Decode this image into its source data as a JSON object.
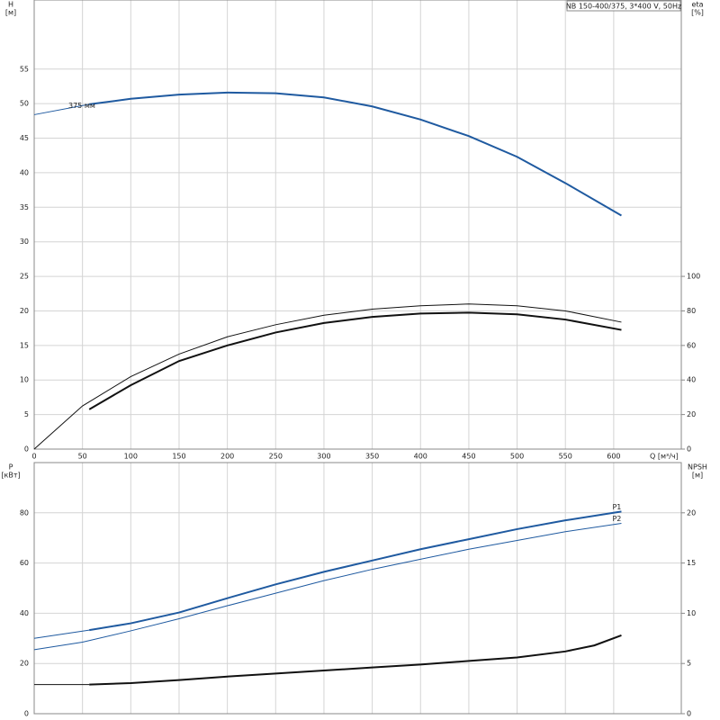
{
  "chart_data": [
    {
      "type": "line",
      "title": "NB 150-400/375, 3*400 V, 50Hz",
      "ylabel": "H",
      "yunit": "[м]",
      "y2label": "eta",
      "y2unit": "[%]",
      "xlabel": "Q [м³/ч]",
      "xlim": [
        0,
        670
      ],
      "xticks": [
        0,
        50,
        100,
        150,
        200,
        250,
        300,
        350,
        400,
        450,
        500,
        550,
        600
      ],
      "ylim": [
        0,
        65
      ],
      "yticks": [
        0,
        5,
        10,
        15,
        20,
        25,
        30,
        35,
        40,
        45,
        50,
        55
      ],
      "y2lim": [
        0,
        260
      ],
      "y2ticks": [
        0,
        20,
        40,
        60,
        80,
        100
      ],
      "grid": true,
      "annotation": "375 мм",
      "series": [
        {
          "color": "#1f5aa0",
          "style": "thin",
          "x": [
            0,
            57
          ],
          "values": [
            48.4,
            49.9
          ]
        },
        {
          "color": "#1f5aa0",
          "style": "thick",
          "x": [
            57,
            100,
            150,
            200,
            250,
            300,
            350,
            400,
            450,
            500,
            550,
            608
          ],
          "values": [
            49.9,
            50.7,
            51.3,
            51.6,
            51.5,
            50.9,
            49.6,
            47.7,
            45.3,
            42.3,
            38.5,
            33.8
          ]
        },
        {
          "color": "#111111",
          "style": "thin",
          "axis": "y2",
          "x": [
            0,
            50,
            100,
            150,
            200,
            250,
            300,
            350,
            400,
            450,
            500,
            550,
            608
          ],
          "values": [
            0,
            25,
            42,
            55,
            65,
            72,
            77.5,
            81,
            83,
            84,
            83,
            80,
            73.5
          ]
        },
        {
          "color": "#111111",
          "style": "thick",
          "axis": "y2",
          "x": [
            57,
            100,
            150,
            200,
            250,
            300,
            350,
            400,
            450,
            500,
            550,
            608
          ],
          "values": [
            23,
            37,
            51,
            60,
            67.5,
            73,
            76.5,
            78.5,
            79,
            78,
            75,
            69
          ]
        }
      ]
    },
    {
      "type": "line",
      "ylabel": "P",
      "yunit": "[кВт]",
      "y2label": "NPSH",
      "y2unit": "[м]",
      "xlim": [
        0,
        670
      ],
      "ylim": [
        0,
        100
      ],
      "yticks": [
        0,
        20,
        40,
        60,
        80
      ],
      "y2lim": [
        0,
        25
      ],
      "y2ticks": [
        0,
        5,
        10,
        15,
        20
      ],
      "grid": true,
      "series": [
        {
          "color": "#1f5aa0",
          "style": "thin",
          "x": [
            0,
            57
          ],
          "values": [
            30,
            33.3
          ]
        },
        {
          "name": "P1",
          "color": "#1f5aa0",
          "style": "thick",
          "x": [
            57,
            100,
            150,
            200,
            250,
            300,
            350,
            400,
            450,
            500,
            550,
            608
          ],
          "values": [
            33.3,
            36,
            40.3,
            46,
            51.5,
            56.5,
            61,
            65.5,
            69.5,
            73.5,
            77,
            80.5
          ]
        },
        {
          "name": "P2",
          "color": "#1f5aa0",
          "style": "thin",
          "x": [
            0,
            50,
            100,
            150,
            200,
            250,
            300,
            350,
            400,
            450,
            500,
            550,
            608
          ],
          "values": [
            25.5,
            28.5,
            33,
            37.8,
            43,
            48,
            53,
            57.5,
            61.5,
            65.5,
            69,
            72.5,
            75.8
          ]
        },
        {
          "color": "#111111",
          "style": "thin",
          "axis": "y2",
          "x": [
            0,
            57
          ],
          "values": [
            2.9,
            2.9
          ]
        },
        {
          "color": "#111111",
          "style": "thick",
          "axis": "y2",
          "x": [
            57,
            100,
            150,
            200,
            250,
            300,
            350,
            400,
            450,
            500,
            550,
            580,
            608
          ],
          "values": [
            2.9,
            3.05,
            3.35,
            3.7,
            4.0,
            4.3,
            4.6,
            4.9,
            5.25,
            5.6,
            6.2,
            6.8,
            7.8
          ]
        }
      ]
    }
  ]
}
